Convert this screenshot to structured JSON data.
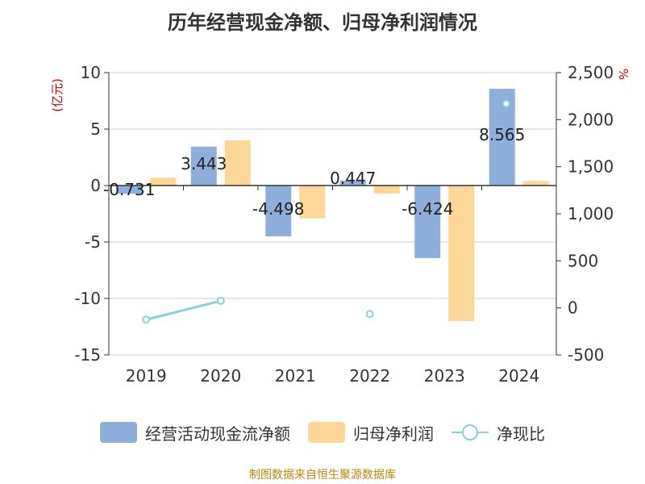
{
  "title": "历年经营现金净额、归母净利润情况",
  "source": "制图数据来自恒生聚源数据库",
  "colors": {
    "op_cf": "#8eaedb",
    "profit": "#fdd797",
    "ratio": "#8ad0d8",
    "axis_unit": "#cc0000",
    "text": "#333333"
  },
  "chart_data": {
    "type": "bar",
    "title": "历年经营现金净额、归母净利润情况",
    "categories": [
      "2019",
      "2020",
      "2021",
      "2022",
      "2023",
      "2024"
    ],
    "y_left": {
      "label": "(亿元)",
      "min": -15,
      "max": 10,
      "ticks": [
        "10",
        "5",
        "0",
        "-5",
        "-10",
        "-15"
      ],
      "tick_values": [
        10,
        5,
        0,
        -5,
        -10,
        -15
      ]
    },
    "y_right": {
      "label": "%",
      "min": -500,
      "max": 2500,
      "ticks": [
        "2,500",
        "2,000",
        "1,500",
        "1,000",
        "500",
        "0",
        "-500"
      ],
      "tick_values": [
        2500,
        2000,
        1500,
        1000,
        500,
        0,
        -500
      ]
    },
    "series": [
      {
        "name": "经营活动现金流净额",
        "type": "bar",
        "axis": "left",
        "values": [
          -0.731,
          3.443,
          -4.498,
          0.447,
          -6.424,
          8.565
        ],
        "labels": [
          "-0.731",
          "3.443",
          "-4.498",
          "0.447",
          "-6.424",
          "8.565"
        ]
      },
      {
        "name": "归母净利润",
        "type": "bar",
        "axis": "left",
        "values": [
          0.7,
          4.0,
          -2.9,
          -0.7,
          -12.0,
          0.4
        ]
      },
      {
        "name": "净现比",
        "type": "line",
        "axis": "right",
        "values": [
          -125,
          75,
          null,
          -65,
          null,
          2170
        ]
      }
    ],
    "grid": true,
    "legend_position": "bottom"
  }
}
